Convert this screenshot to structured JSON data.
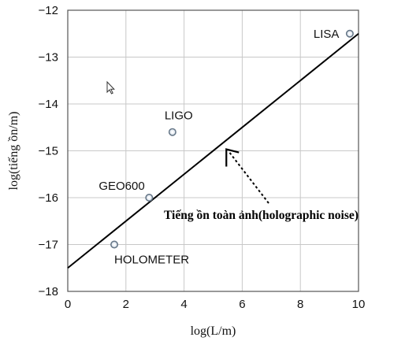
{
  "chart_data": {
    "type": "scatter",
    "xlabel": "log(L/m)",
    "ylabel": "log(tiếng ồn/m)",
    "xlim": [
      0,
      10
    ],
    "ylim": [
      -18,
      -12
    ],
    "x_ticks": [
      0,
      2,
      4,
      6,
      8,
      10
    ],
    "y_ticks": [
      -12,
      -13,
      -14,
      -15,
      -16,
      -17,
      -18
    ],
    "x_tick_labels": [
      "0",
      "2",
      "4",
      "6",
      "8",
      "10"
    ],
    "y_tick_labels": [
      "−12",
      "−13",
      "−14",
      "−15",
      "−16",
      "−17",
      "−18"
    ],
    "grid": true,
    "points": [
      {
        "label": "LISA",
        "x": 9.7,
        "y": -12.5
      },
      {
        "label": "LIGO",
        "x": 3.6,
        "y": -14.6
      },
      {
        "label": "GEO600",
        "x": 2.8,
        "y": -16.0
      },
      {
        "label": "HOLOMETER",
        "x": 1.6,
        "y": -17.0
      }
    ],
    "line": {
      "x": [
        0,
        10
      ],
      "y": [
        -17.5,
        -12.5
      ]
    },
    "annotation": {
      "text": "Tiếng ồn toàn ảnh(holographic noise)",
      "target_x": 5.4,
      "target_y": -14.9
    }
  }
}
